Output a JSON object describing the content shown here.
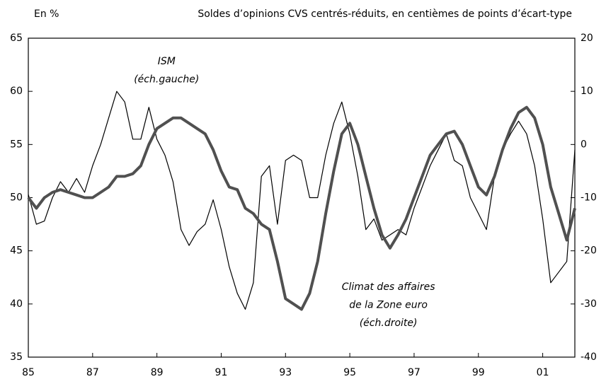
{
  "chart_data": {
    "type": "line",
    "y_label": "En %",
    "subtitle": "Soldes d’opinions CVS centrés-réduits, en centièmes de points d’écart-type",
    "x": [
      1985,
      1985.25,
      1985.5,
      1985.75,
      1986,
      1986.25,
      1986.5,
      1986.75,
      1987,
      1987.25,
      1987.5,
      1987.75,
      1988,
      1988.25,
      1988.5,
      1988.75,
      1989,
      1989.25,
      1989.5,
      1989.75,
      1990,
      1990.25,
      1990.5,
      1990.75,
      1991,
      1991.25,
      1991.5,
      1991.75,
      1992,
      1992.25,
      1992.5,
      1992.75,
      1993,
      1993.25,
      1993.5,
      1993.75,
      1994,
      1994.25,
      1994.5,
      1994.75,
      1995,
      1995.25,
      1995.5,
      1995.75,
      1996,
      1996.25,
      1996.5,
      1996.75,
      1997,
      1997.25,
      1997.5,
      1997.75,
      1998,
      1998.25,
      1998.5,
      1998.75,
      1999,
      1999.25,
      1999.5,
      1999.75,
      2000,
      2000.25,
      2000.5,
      2000.75,
      2001,
      2001.25,
      2001.5,
      2001.75,
      2002
    ],
    "series": [
      {
        "color": "#000000",
        "width": 1.2,
        "values": [
          50.3,
          47.5,
          47.8,
          50,
          51.5,
          50.5,
          51.8,
          50.5,
          53,
          55,
          57.5,
          60,
          59,
          55.5,
          55.5,
          58.5,
          55.5,
          54,
          51.5,
          47,
          45.5,
          46.8,
          47.5,
          49.8,
          47,
          43.5,
          41,
          39.5,
          42,
          52,
          53,
          47.5,
          53.5,
          54,
          53.5,
          50,
          50,
          54,
          57,
          59,
          56,
          52,
          47,
          48,
          46,
          46.5,
          47,
          46.5,
          49,
          51,
          53,
          54.5,
          56,
          53.5,
          53,
          50,
          48.5,
          47,
          52,
          54.5,
          56,
          57.2,
          56,
          53,
          48,
          42,
          43,
          44,
          54.5
        ]
      },
      {
        "color": "#505050",
        "width": 4,
        "axis": "y2",
        "values": [
          -10,
          -12,
          -10,
          -9,
          -8.5,
          -9,
          -9.5,
          -10,
          -10,
          -9,
          -8,
          -6,
          -6,
          -5.5,
          -4,
          0,
          3,
          4,
          5,
          5,
          4,
          3,
          2,
          -1,
          -5,
          -8,
          -8.5,
          -12,
          -13,
          -15,
          -16,
          -22,
          -29,
          -30,
          -31,
          -28,
          -22,
          -13,
          -5,
          2,
          4,
          0,
          -6,
          -12,
          -17,
          -19.5,
          -17,
          -14,
          -10,
          -6,
          -2,
          0,
          2,
          2.5,
          0,
          -4,
          -8,
          -9.5,
          -6,
          -1,
          3,
          6,
          7,
          5,
          0,
          -8,
          -13,
          -18,
          -12
        ]
      }
    ],
    "annotations": [
      {
        "text": "ISM",
        "x": 1989.3,
        "y": 62.8
      },
      {
        "text": "(éch.gauche)",
        "x": 1989.3,
        "y": 61.1
      },
      {
        "text": "Climat des affaires",
        "x": 1996.2,
        "y": 41.6
      },
      {
        "text": "de la Zone euro",
        "x": 1996.2,
        "y": 39.9
      },
      {
        "text": "(éch.droite)",
        "x": 1996.2,
        "y": 38.2
      }
    ],
    "xlim": [
      1985,
      2002
    ],
    "xticks": [
      {
        "value": 1985,
        "label": "85"
      },
      {
        "value": 1987,
        "label": "87"
      },
      {
        "value": 1989,
        "label": "89"
      },
      {
        "value": 1991,
        "label": "91"
      },
      {
        "value": 1993,
        "label": "93"
      },
      {
        "value": 1995,
        "label": "95"
      },
      {
        "value": 1997,
        "label": "97"
      },
      {
        "value": 1999,
        "label": "99"
      },
      {
        "value": 2001,
        "label": "01"
      }
    ],
    "ylim": [
      35,
      65
    ],
    "yticks": [
      35,
      40,
      45,
      50,
      55,
      60,
      65
    ],
    "y2lim": [
      -40,
      20
    ],
    "y2ticks": [
      -40,
      -30,
      -20,
      -10,
      0,
      10,
      20
    ]
  }
}
